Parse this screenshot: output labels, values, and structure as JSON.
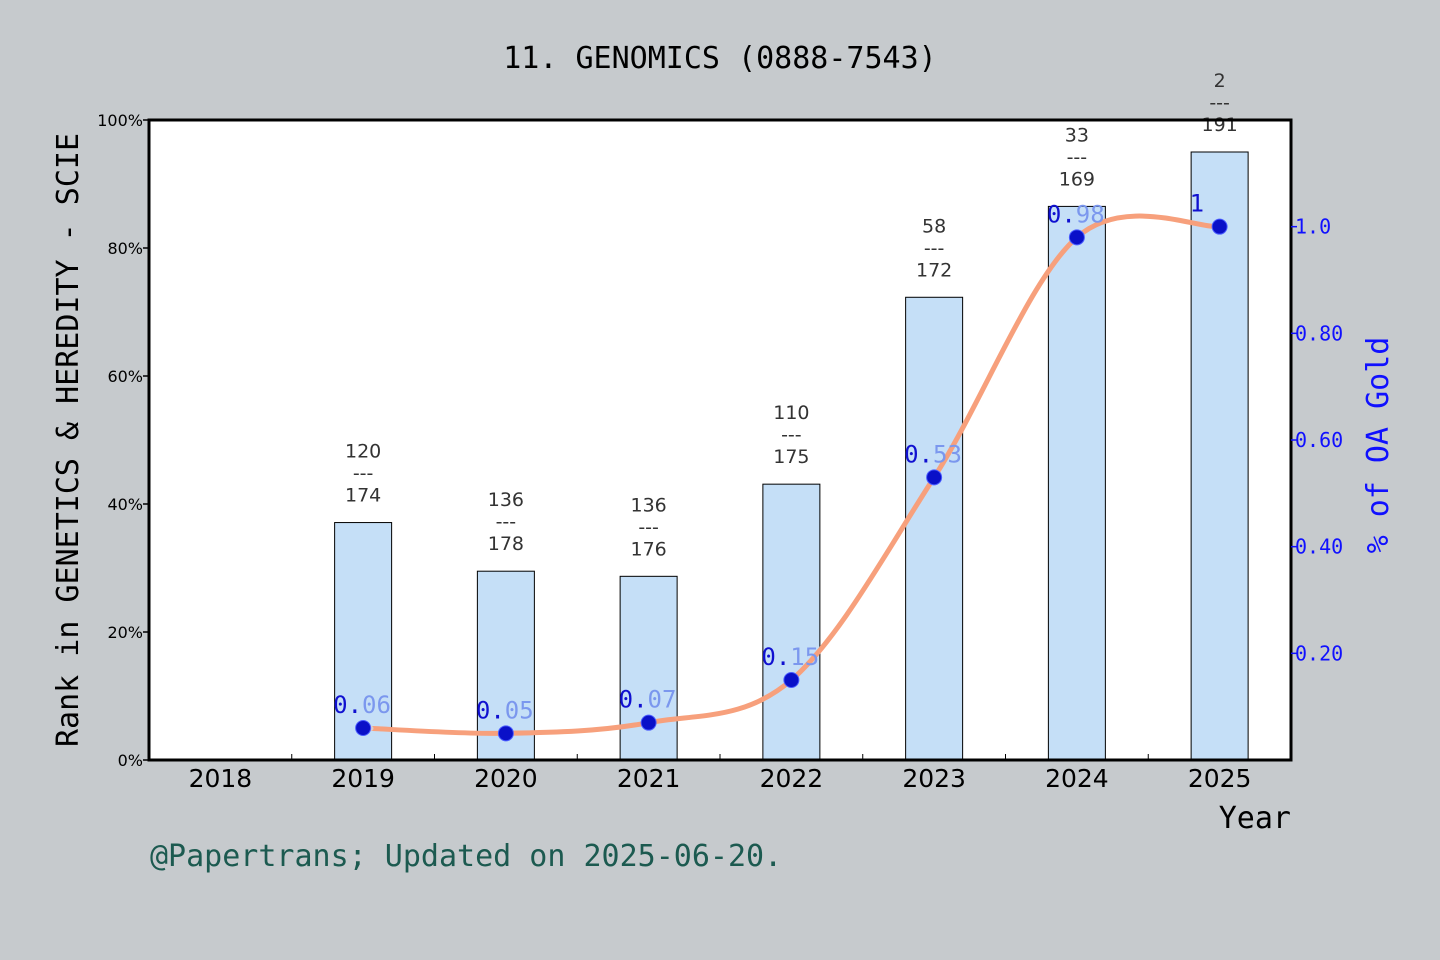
{
  "title": "11. GENOMICS (0888-7543)",
  "credit": "@Papertrans; Updated on 2025-06-20.",
  "colors": {
    "background": "#c6cacd",
    "bar_fill": "#c5dff7",
    "line": "#f7a07c",
    "marker": "#0a10c8",
    "right_axis": "#1010ff",
    "credit": "#1c5a50"
  },
  "chart_data": {
    "type": "bar",
    "categories": [
      "2018",
      "2019",
      "2020",
      "2021",
      "2022",
      "2023",
      "2024",
      "2025"
    ],
    "xlabel": "Year",
    "ylabel": "Rank in GENETICS & HEREDITY - SCIE",
    "y2label": "% of OA Gold",
    "ylim": [
      0,
      100
    ],
    "y2lim": [
      0,
      1.2
    ],
    "yticks": [
      "0%",
      "20%",
      "40%",
      "60%",
      "80%",
      "100%"
    ],
    "y2ticks": [
      "0.20",
      "0.40",
      "0.60",
      "0.80",
      "1.0"
    ],
    "y2tick_values": [
      0.2,
      0.4,
      0.6,
      0.8,
      1.0
    ],
    "series": [
      {
        "type": "bar",
        "values": [
          null,
          37.1,
          29.5,
          28.7,
          43.1,
          72.3,
          86.5,
          95.0
        ],
        "rank_top": [
          "",
          "120",
          "136",
          "136",
          "110",
          "58",
          "33",
          "2"
        ],
        "rank_sep": [
          "",
          "---",
          "---",
          "---",
          "---",
          "---",
          "---",
          "---"
        ],
        "rank_bottom": [
          "",
          "174",
          "178",
          "176",
          "175",
          "172",
          "169",
          "191"
        ]
      },
      {
        "type": "line",
        "axis": "right",
        "values": [
          null,
          0.06,
          0.05,
          0.07,
          0.15,
          0.53,
          0.98,
          1.0
        ],
        "labels": [
          "",
          "0.06",
          "0.05",
          "0.07",
          "0.15",
          "0.53",
          "0.98",
          "1"
        ]
      }
    ],
    "grid": false
  }
}
